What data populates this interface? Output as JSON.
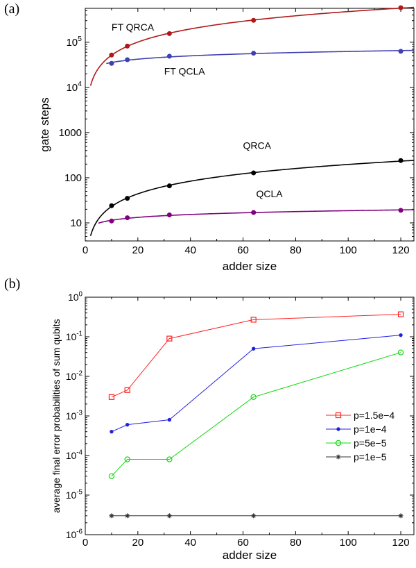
{
  "chart_data": [
    {
      "panel": "(a)",
      "type": "line",
      "xlabel": "adder size",
      "ylabel": "gate steps",
      "xlim": [
        0,
        125
      ],
      "ylim_log10": [
        0.6,
        5.75
      ],
      "yscale": "log",
      "grid": false,
      "x_ticks": [
        0,
        20,
        40,
        60,
        80,
        100,
        120
      ],
      "x_tick_labels": [
        "0",
        "20",
        "40",
        "60",
        "80",
        "100",
        "120"
      ],
      "y_ticks": [
        10,
        100,
        1000,
        10000,
        100000
      ],
      "y_tick_labels": [
        {
          "base": "10",
          "sup": ""
        },
        {
          "base": "100",
          "sup": ""
        },
        {
          "base": "1000",
          "sup": ""
        },
        {
          "base": "10",
          "sup": "4"
        },
        {
          "base": "10",
          "sup": "5"
        }
      ],
      "series": [
        {
          "name": "FT QRCA",
          "color": "#b01818",
          "x": [
            10,
            16,
            32,
            64,
            120
          ],
          "y": [
            52000,
            82000,
            155000,
            305000,
            580000
          ],
          "curve_from": 2,
          "curve_to": 125,
          "label_anchor_x": 10,
          "label_anchor_y": 180000
        },
        {
          "name": "FT QCLA",
          "color": "#4040b0",
          "x": [
            10,
            16,
            32,
            64,
            120
          ],
          "y": [
            34000,
            41000,
            49000,
            57000,
            63000
          ],
          "curve_from": 8,
          "curve_to": 125,
          "label_anchor_x": 30,
          "label_anchor_y": 19000
        },
        {
          "name": "QRCA",
          "color": "#000000",
          "x": [
            10,
            16,
            32,
            64,
            120
          ],
          "y": [
            24,
            35,
            66,
            128,
            240
          ],
          "curve_from": 2,
          "curve_to": 125,
          "label_anchor_x": 60,
          "label_anchor_y": 430
        },
        {
          "name": "QCLA",
          "color": "#800080",
          "x": [
            10,
            16,
            32,
            64,
            120
          ],
          "y": [
            11,
            13,
            15,
            17,
            19
          ],
          "curve_from": 5,
          "curve_to": 125,
          "label_anchor_x": 65,
          "label_anchor_y": 37
        }
      ]
    },
    {
      "panel": "(b)",
      "type": "line",
      "xlabel": "adder size",
      "ylabel": "average final error probabilities of sum qubits",
      "xlim": [
        0,
        125
      ],
      "ylim_log10": [
        -6,
        0
      ],
      "yscale": "log",
      "grid": false,
      "legend_position": "bottom-right",
      "x_ticks": [
        0,
        20,
        40,
        60,
        80,
        100,
        120
      ],
      "x_tick_labels": [
        "0",
        "20",
        "40",
        "60",
        "80",
        "100",
        "120"
      ],
      "y_ticks_exp": [
        -6,
        -5,
        -4,
        -3,
        -2,
        -1,
        0
      ],
      "y_tick_labels": [
        {
          "base": "10",
          "sup": "-6"
        },
        {
          "base": "10",
          "sup": "-5"
        },
        {
          "base": "10",
          "sup": "-4"
        },
        {
          "base": "10",
          "sup": "-3"
        },
        {
          "base": "10",
          "sup": "-2"
        },
        {
          "base": "10",
          "sup": "-1"
        },
        {
          "base": "10",
          "sup": "0"
        }
      ],
      "series": [
        {
          "name": "p=1.5e−4",
          "color": "#ff2020",
          "marker": "square",
          "x": [
            10,
            16,
            32,
            64,
            120
          ],
          "y": [
            0.003,
            0.0045,
            0.09,
            0.27,
            0.37
          ]
        },
        {
          "name": "p=1e−4",
          "color": "#1f1fe0",
          "marker": "dot",
          "x": [
            10,
            16,
            32,
            64,
            120
          ],
          "y": [
            0.0004,
            0.0006,
            0.0008,
            0.05,
            0.11
          ]
        },
        {
          "name": "p=5e−5",
          "color": "#11d911",
          "marker": "circle",
          "x": [
            10,
            16,
            32,
            64,
            120
          ],
          "y": [
            3e-05,
            8e-05,
            8e-05,
            0.003,
            0.04
          ]
        },
        {
          "name": "p=1e−5",
          "color": "#303030",
          "marker": "star",
          "x": [
            10,
            16,
            32,
            64,
            120
          ],
          "y": [
            3e-06,
            3e-06,
            3e-06,
            3e-06,
            3e-06
          ]
        }
      ]
    }
  ],
  "panel_labels": {
    "a": "(a)",
    "b": "(b)"
  }
}
